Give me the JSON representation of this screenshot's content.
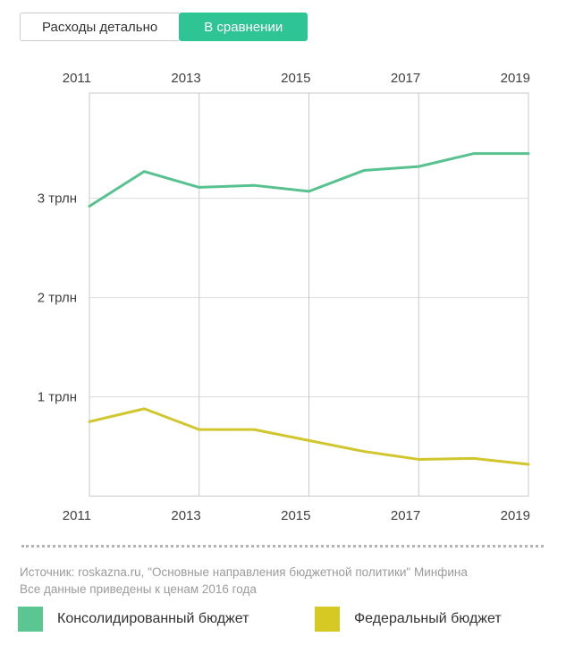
{
  "tabs": [
    {
      "label": "Расходы детально",
      "active": false
    },
    {
      "label": "В сравнении",
      "active": true
    }
  ],
  "colors": {
    "active_tab": "#2fc493",
    "consolidated_line": "#57c28f",
    "federal_line": "#d1c62d",
    "grid_border": "#c9c9c9",
    "grid_inner": "#dddddd",
    "axis_text": "#3f3f3f",
    "source_text": "#9b9b9b"
  },
  "source": {
    "line1": "Источник: roskazna.ru, \"Основные направления бюджетной политики\" Минфина",
    "line2": "Все данные приведены к ценам 2016 года"
  },
  "legend": [
    {
      "label": "Консолидированный бюджет",
      "color": "#5cc693"
    },
    {
      "label": "Федеральный бюджет",
      "color": "#d6c924"
    }
  ],
  "chart_data": {
    "type": "line",
    "x": [
      2011,
      2012,
      2013,
      2014,
      2015,
      2016,
      2017,
      2018,
      2019
    ],
    "series": [
      {
        "name": "Консолидированный бюджет",
        "color": "#57c28f",
        "values": [
          2.92,
          3.27,
          3.11,
          3.13,
          3.07,
          3.28,
          3.32,
          3.45,
          3.45
        ]
      },
      {
        "name": "Федеральный бюджет",
        "color": "#d1c62d",
        "values": [
          0.75,
          0.88,
          0.67,
          0.67,
          0.56,
          0.45,
          0.37,
          0.38,
          0.32
        ]
      }
    ],
    "x_ticks": [
      "2011",
      "2013",
      "2015",
      "2017",
      "2019"
    ],
    "y_ticks": [
      {
        "value": 3,
        "label": "3 трлн"
      },
      {
        "value": 2,
        "label": "2 трлн"
      },
      {
        "value": 1,
        "label": "1 трлн"
      }
    ],
    "xlim": [
      2011,
      2019
    ],
    "ylim": [
      0,
      4.06
    ],
    "units": "трлн",
    "grid": true,
    "legend_position": "bottom",
    "title": ""
  }
}
